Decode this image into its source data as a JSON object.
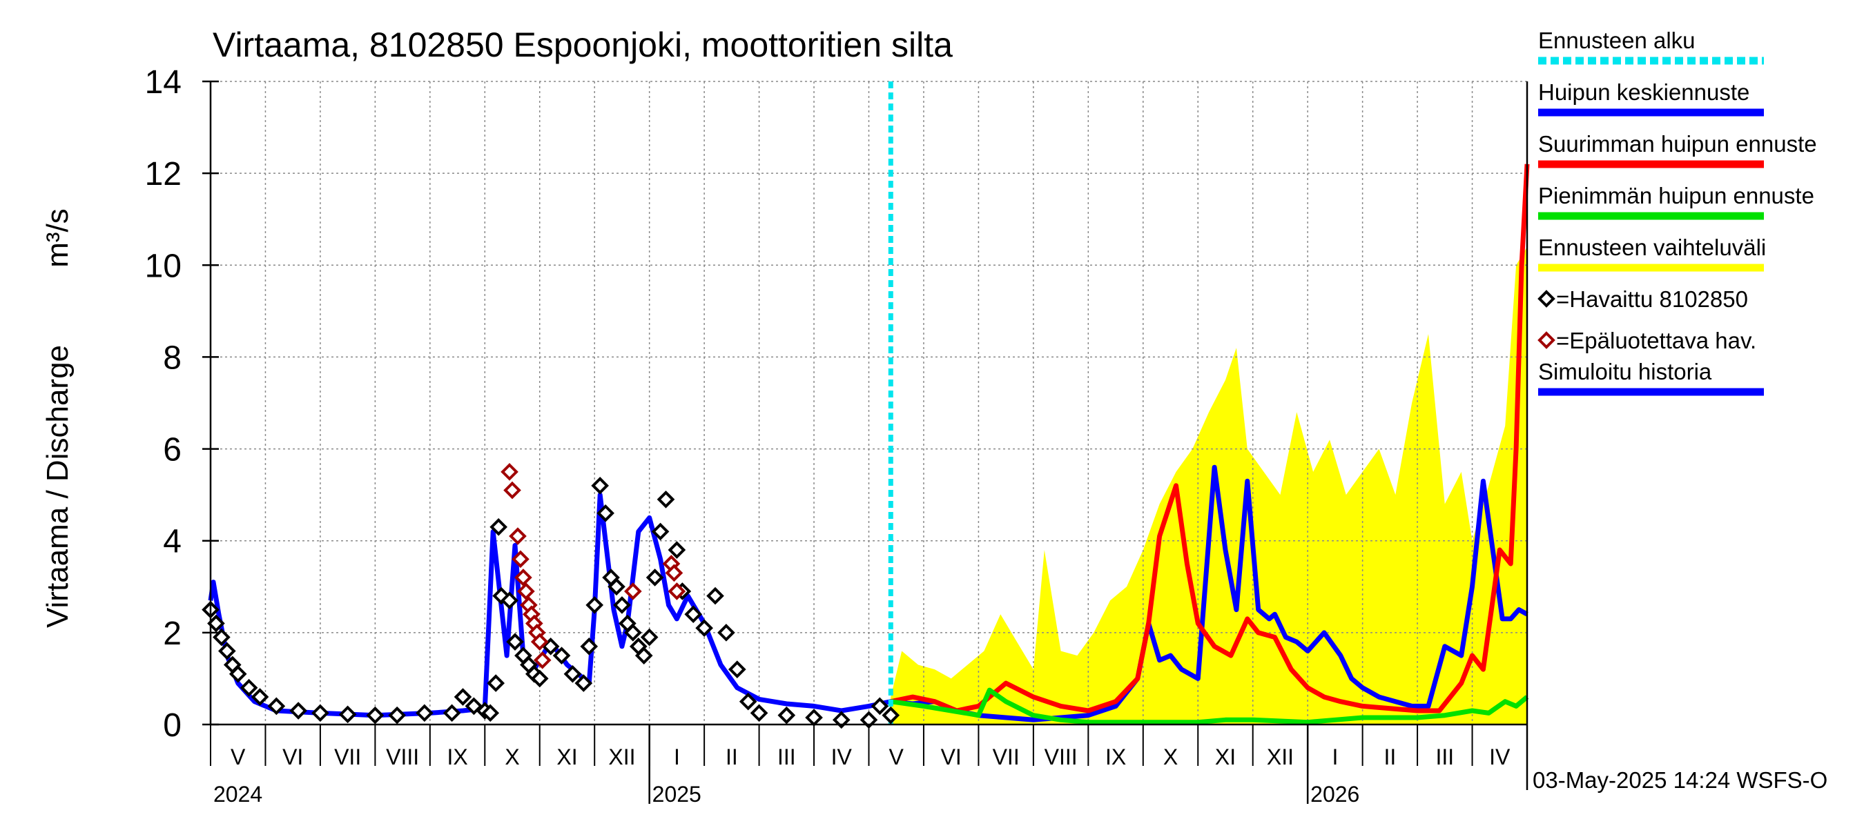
{
  "chart_data": {
    "type": "line",
    "title": "Virtaama, 8102850 Espoonjoki, moottoritien silta",
    "ylabel": "Virtaama / Discharge",
    "yunit": "m³/s",
    "ylim": [
      0,
      14
    ],
    "yticks": [
      "0",
      "2",
      "4",
      "6",
      "8",
      "10",
      "12",
      "14"
    ],
    "months": [
      "V",
      "VI",
      "VII",
      "VIII",
      "IX",
      "X",
      "XI",
      "XII",
      "I",
      "II",
      "III",
      "IV",
      "V",
      "VI",
      "VII",
      "VIII",
      "IX",
      "X",
      "XI",
      "XII",
      "I",
      "II",
      "III",
      "IV"
    ],
    "years": [
      "2024",
      "2025",
      "2026"
    ],
    "forecast_start_month_index": 12.4,
    "timestamp": "03-May-2025 14:24 WSFS-O",
    "legend": [
      {
        "key": "ennusteen_alku",
        "label": "Ennusteen alku",
        "color": "#00e5ee",
        "style": "dash"
      },
      {
        "key": "huipun_keski",
        "label": "Huipun keskiennuste",
        "color": "#0000ff",
        "style": "line"
      },
      {
        "key": "suurin",
        "label": "Suurimman huipun ennuste",
        "color": "#ff0000",
        "style": "line"
      },
      {
        "key": "pienin",
        "label": "Pienimmän huipun ennuste",
        "color": "#00e000",
        "style": "line"
      },
      {
        "key": "vaihteluvali",
        "label": "Ennusteen vaihteluväli",
        "color": "#ffff00",
        "style": "band"
      },
      {
        "key": "havaittu",
        "label": "=Havaittu 8102850",
        "color": "#000000",
        "style": "marker"
      },
      {
        "key": "epaluotettava",
        "label": "=Epäluotettava hav.",
        "color": "#a00000",
        "style": "marker"
      },
      {
        "key": "simuloitu",
        "label": "Simuloitu historia",
        "color": "#0000ff",
        "style": "line"
      }
    ],
    "series": [
      {
        "name": "Simuloitu historia",
        "color": "#0000ff",
        "x": [
          0,
          0.05,
          0.15,
          0.3,
          0.5,
          0.8,
          1.2,
          2,
          3,
          4,
          4.6,
          5.0,
          5.15,
          5.4,
          5.55,
          5.7,
          5.9,
          6.2,
          6.5,
          6.9,
          7.0,
          7.1,
          7.2,
          7.35,
          7.5,
          7.6,
          7.8,
          8.0,
          8.2,
          8.35,
          8.5,
          8.7,
          9.0,
          9.3,
          9.6,
          10,
          10.5,
          11,
          11.5,
          12,
          12.4
        ],
        "values": [
          2.7,
          3.1,
          2.4,
          1.5,
          0.9,
          0.5,
          0.3,
          0.25,
          0.2,
          0.25,
          0.3,
          0.35,
          4.2,
          1.5,
          3.9,
          1.5,
          1.2,
          1.8,
          1.3,
          0.9,
          2.5,
          5.0,
          4.0,
          2.5,
          1.7,
          2.2,
          4.2,
          4.5,
          3.6,
          2.6,
          2.3,
          2.8,
          2.2,
          1.3,
          0.8,
          0.55,
          0.45,
          0.4,
          0.3,
          0.4,
          0.5
        ]
      },
      {
        "name": "Huipun keskiennuste",
        "color": "#0000ff",
        "x": [
          12.4,
          12.8,
          13.2,
          13.6,
          14.0,
          14.5,
          15.0,
          15.5,
          16.0,
          16.5,
          16.9,
          17.1,
          17.3,
          17.5,
          17.7,
          18.0,
          18.3,
          18.5,
          18.7,
          18.9,
          19.1,
          19.3,
          19.4,
          19.6,
          19.8,
          20.0,
          20.3,
          20.6,
          20.8,
          21.0,
          21.3,
          21.6,
          21.9,
          22.2,
          22.5,
          22.8,
          23.0,
          23.2,
          23.35,
          23.55,
          23.7,
          23.85,
          24.0
        ],
        "values": [
          0.5,
          0.45,
          0.5,
          0.3,
          0.2,
          0.15,
          0.1,
          0.15,
          0.2,
          0.4,
          1.0,
          2.2,
          1.4,
          1.5,
          1.2,
          1.0,
          5.6,
          3.8,
          2.5,
          5.3,
          2.5,
          2.3,
          2.4,
          1.9,
          1.8,
          1.6,
          2.0,
          1.5,
          1.0,
          0.8,
          0.6,
          0.5,
          0.4,
          0.4,
          1.7,
          1.5,
          3.0,
          5.3,
          4.0,
          2.3,
          2.3,
          2.5,
          2.4
        ]
      },
      {
        "name": "Suurimman huipun ennuste",
        "color": "#ff0000",
        "x": [
          12.4,
          12.8,
          13.2,
          13.6,
          14.0,
          14.5,
          15.0,
          15.5,
          16.0,
          16.5,
          16.9,
          17.1,
          17.3,
          17.6,
          17.8,
          18.0,
          18.3,
          18.6,
          18.9,
          19.1,
          19.4,
          19.7,
          20.0,
          20.3,
          20.6,
          21.0,
          21.5,
          22.0,
          22.4,
          22.6,
          22.8,
          23.0,
          23.2,
          23.5,
          23.7,
          23.8,
          23.9,
          24.0
        ],
        "values": [
          0.5,
          0.6,
          0.5,
          0.3,
          0.4,
          0.9,
          0.6,
          0.4,
          0.3,
          0.5,
          1.0,
          2.2,
          4.1,
          5.2,
          3.5,
          2.2,
          1.7,
          1.5,
          2.3,
          2.0,
          1.9,
          1.2,
          0.8,
          0.6,
          0.5,
          0.4,
          0.35,
          0.3,
          0.3,
          0.6,
          0.9,
          1.5,
          1.2,
          3.8,
          3.5,
          6.0,
          10.0,
          12.2
        ]
      },
      {
        "name": "Pienimmän huipun ennuste",
        "color": "#00e000",
        "x": [
          12.4,
          13.0,
          13.5,
          14.0,
          14.2,
          14.5,
          15.0,
          15.5,
          16.0,
          17.0,
          18.0,
          18.5,
          19.0,
          20.0,
          20.5,
          21.0,
          22.0,
          22.5,
          23.0,
          23.3,
          23.6,
          23.8,
          24.0
        ],
        "values": [
          0.5,
          0.4,
          0.3,
          0.2,
          0.75,
          0.5,
          0.2,
          0.1,
          0.05,
          0.05,
          0.05,
          0.1,
          0.1,
          0.05,
          0.1,
          0.15,
          0.15,
          0.2,
          0.3,
          0.25,
          0.5,
          0.4,
          0.6
        ]
      },
      {
        "name": "Ennusteen vaihteluväli",
        "color": "#ffff00",
        "x": [
          12.4,
          12.6,
          12.9,
          13.2,
          13.5,
          13.8,
          14.1,
          14.4,
          14.7,
          15.0,
          15.2,
          15.5,
          15.8,
          16.1,
          16.4,
          16.7,
          17.0,
          17.3,
          17.6,
          17.9,
          18.2,
          18.5,
          18.7,
          18.9,
          19.2,
          19.5,
          19.8,
          20.1,
          20.4,
          20.7,
          21.0,
          21.3,
          21.6,
          21.9,
          22.2,
          22.5,
          22.8,
          23.0,
          23.3,
          23.6,
          23.8,
          24.0
        ],
        "values": [
          0.6,
          1.6,
          1.3,
          1.2,
          1.0,
          1.3,
          1.6,
          2.4,
          1.8,
          1.2,
          3.8,
          1.6,
          1.5,
          2.0,
          2.7,
          3.0,
          3.8,
          4.8,
          5.5,
          6.0,
          6.8,
          7.5,
          8.2,
          6.0,
          5.5,
          5.0,
          6.8,
          5.5,
          6.2,
          5.0,
          5.5,
          6.0,
          5.0,
          7.0,
          8.5,
          4.8,
          5.5,
          4.0,
          5.2,
          6.5,
          10.0,
          10.4
        ]
      }
    ],
    "observed": {
      "name": "Havaittu 8102850",
      "color": "#000000",
      "x": [
        0.0,
        0.1,
        0.2,
        0.3,
        0.4,
        0.5,
        0.7,
        0.9,
        1.2,
        1.6,
        2.0,
        2.5,
        3.0,
        3.4,
        3.9,
        4.4,
        4.6,
        4.8,
        5.0,
        5.1,
        5.2,
        5.25,
        5.3,
        5.45,
        5.55,
        5.7,
        5.8,
        5.9,
        6.0,
        6.2,
        6.4,
        6.6,
        6.8,
        6.9,
        7.0,
        7.1,
        7.2,
        7.3,
        7.4,
        7.5,
        7.6,
        7.7,
        7.8,
        7.9,
        8.0,
        8.1,
        8.2,
        8.3,
        8.5,
        8.6,
        8.8,
        9.0,
        9.2,
        9.4,
        9.6,
        9.8,
        10.0,
        10.5,
        11.0,
        11.5,
        12.0,
        12.2,
        12.4
      ],
      "values": [
        2.5,
        2.2,
        1.9,
        1.6,
        1.3,
        1.1,
        0.8,
        0.6,
        0.4,
        0.3,
        0.25,
        0.22,
        0.2,
        0.2,
        0.25,
        0.25,
        0.6,
        0.4,
        0.3,
        0.25,
        0.9,
        4.3,
        2.8,
        2.7,
        1.8,
        1.5,
        1.3,
        1.1,
        1.0,
        1.7,
        1.5,
        1.1,
        0.9,
        1.7,
        2.6,
        5.2,
        4.6,
        3.2,
        3.0,
        2.6,
        2.2,
        2.0,
        1.7,
        1.5,
        1.9,
        3.2,
        4.2,
        4.9,
        3.8,
        2.9,
        2.4,
        2.1,
        2.8,
        2.0,
        1.2,
        0.5,
        0.25,
        0.2,
        0.15,
        0.1,
        0.1,
        0.4,
        0.2
      ]
    },
    "unreliable": {
      "name": "Epäluotettava hav.",
      "color": "#a00000",
      "x": [
        5.45,
        5.5,
        5.6,
        5.65,
        5.7,
        5.75,
        5.8,
        5.85,
        5.9,
        5.95,
        6.0,
        6.05,
        7.7,
        8.4,
        8.45,
        8.5
      ],
      "values": [
        5.5,
        5.1,
        4.1,
        3.6,
        3.2,
        2.9,
        2.6,
        2.4,
        2.2,
        2.0,
        1.8,
        1.4,
        2.9,
        3.5,
        3.3,
        2.9
      ]
    }
  }
}
